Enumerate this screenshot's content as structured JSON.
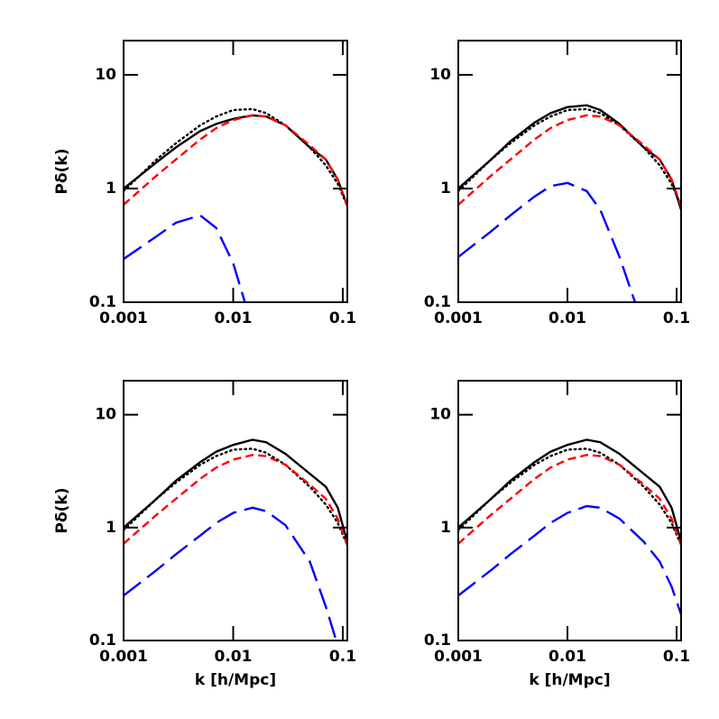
{
  "chart_data": [
    {
      "type": "line",
      "log_scale": true,
      "xlim": [
        0.001,
        0.11
      ],
      "ylim": [
        0.1,
        20
      ],
      "xticks": [
        0.001,
        0.01,
        0.1
      ],
      "yticks": [
        0.1,
        1,
        10
      ],
      "y_label": "Pδ(k)",
      "x": [
        0.001,
        0.002,
        0.003,
        0.005,
        0.007,
        0.01,
        0.015,
        0.02,
        0.03,
        0.05,
        0.07,
        0.09,
        0.11
      ],
      "series": [
        {
          "color": "#000000",
          "style": "solid",
          "values": [
            1.0,
            1.7,
            2.3,
            3.2,
            3.7,
            4.1,
            4.4,
            4.3,
            3.6,
            2.3,
            1.8,
            1.2,
            0.7
          ]
        },
        {
          "color": "#000000",
          "style": "dotted",
          "values": [
            0.95,
            1.8,
            2.5,
            3.6,
            4.3,
            4.9,
            5.0,
            4.6,
            3.6,
            2.3,
            1.6,
            1.1,
            0.7
          ]
        },
        {
          "color": "#ff0000",
          "style": "dashed",
          "values": [
            0.72,
            1.3,
            1.8,
            2.7,
            3.4,
            4.0,
            4.4,
            4.3,
            3.6,
            2.4,
            1.8,
            1.2,
            0.7
          ]
        },
        {
          "color": "#0000ff",
          "style": "longdash",
          "values": [
            0.24,
            0.38,
            0.5,
            0.58,
            0.45,
            0.22,
            0.06,
            null,
            null,
            null,
            null,
            null,
            null
          ]
        }
      ]
    },
    {
      "type": "line",
      "log_scale": true,
      "xlim": [
        0.001,
        0.11
      ],
      "ylim": [
        0.1,
        20
      ],
      "xticks": [
        0.001,
        0.01,
        0.1
      ],
      "yticks": [
        0.1,
        1,
        10
      ],
      "x": [
        0.001,
        0.002,
        0.003,
        0.005,
        0.007,
        0.01,
        0.015,
        0.02,
        0.03,
        0.05,
        0.07,
        0.09,
        0.11
      ],
      "series": [
        {
          "color": "#000000",
          "style": "solid",
          "values": [
            1.0,
            1.8,
            2.6,
            3.8,
            4.6,
            5.2,
            5.4,
            4.9,
            3.7,
            2.3,
            1.8,
            1.2,
            0.65
          ]
        },
        {
          "color": "#000000",
          "style": "dotted",
          "values": [
            0.95,
            1.8,
            2.5,
            3.6,
            4.3,
            4.9,
            5.0,
            4.6,
            3.6,
            2.3,
            1.6,
            1.1,
            0.7
          ]
        },
        {
          "color": "#ff0000",
          "style": "dashed",
          "values": [
            0.72,
            1.3,
            1.8,
            2.7,
            3.4,
            4.0,
            4.4,
            4.3,
            3.6,
            2.4,
            1.8,
            1.2,
            0.7
          ]
        },
        {
          "color": "#0000ff",
          "style": "longdash",
          "values": [
            0.25,
            0.42,
            0.58,
            0.85,
            1.05,
            1.12,
            0.95,
            0.65,
            0.25,
            0.06,
            null,
            null,
            null
          ]
        }
      ]
    },
    {
      "type": "line",
      "log_scale": true,
      "xlim": [
        0.001,
        0.11
      ],
      "ylim": [
        0.1,
        20
      ],
      "xticks": [
        0.001,
        0.01,
        0.1
      ],
      "yticks": [
        0.1,
        1,
        10
      ],
      "x_label": "k [h/Mpc]",
      "y_label": "Pδ(k)",
      "x": [
        0.001,
        0.002,
        0.003,
        0.005,
        0.007,
        0.01,
        0.015,
        0.02,
        0.03,
        0.05,
        0.07,
        0.09,
        0.11
      ],
      "series": [
        {
          "color": "#000000",
          "style": "solid",
          "values": [
            1.0,
            1.8,
            2.6,
            3.8,
            4.7,
            5.4,
            6.0,
            5.7,
            4.5,
            3.0,
            2.3,
            1.5,
            0.75
          ]
        },
        {
          "color": "#000000",
          "style": "dotted",
          "values": [
            0.95,
            1.8,
            2.5,
            3.6,
            4.3,
            4.9,
            5.0,
            4.6,
            3.6,
            2.3,
            1.6,
            1.1,
            0.7
          ]
        },
        {
          "color": "#ff0000",
          "style": "dashed",
          "values": [
            0.72,
            1.3,
            1.8,
            2.7,
            3.4,
            4.0,
            4.4,
            4.3,
            3.6,
            2.4,
            1.8,
            1.2,
            0.7
          ]
        },
        {
          "color": "#0000ff",
          "style": "longdash",
          "values": [
            0.25,
            0.42,
            0.58,
            0.85,
            1.1,
            1.35,
            1.5,
            1.4,
            1.05,
            0.5,
            0.2,
            0.09,
            null
          ]
        }
      ]
    },
    {
      "type": "line",
      "log_scale": true,
      "xlim": [
        0.001,
        0.11
      ],
      "ylim": [
        0.1,
        20
      ],
      "xticks": [
        0.001,
        0.01,
        0.1
      ],
      "yticks": [
        0.1,
        1,
        10
      ],
      "x_label": "k [h/Mpc]",
      "x": [
        0.001,
        0.002,
        0.003,
        0.005,
        0.007,
        0.01,
        0.015,
        0.02,
        0.03,
        0.05,
        0.07,
        0.09,
        0.11
      ],
      "series": [
        {
          "color": "#000000",
          "style": "solid",
          "values": [
            1.0,
            1.8,
            2.6,
            3.8,
            4.7,
            5.4,
            6.0,
            5.7,
            4.5,
            3.0,
            2.3,
            1.5,
            0.75
          ]
        },
        {
          "color": "#000000",
          "style": "dotted",
          "values": [
            0.95,
            1.8,
            2.5,
            3.6,
            4.3,
            4.9,
            5.0,
            4.6,
            3.6,
            2.3,
            1.6,
            1.1,
            0.7
          ]
        },
        {
          "color": "#ff0000",
          "style": "dashed",
          "values": [
            0.72,
            1.3,
            1.8,
            2.7,
            3.4,
            4.0,
            4.4,
            4.3,
            3.6,
            2.4,
            1.8,
            1.2,
            0.7
          ]
        },
        {
          "color": "#0000ff",
          "style": "longdash",
          "values": [
            0.25,
            0.42,
            0.58,
            0.85,
            1.1,
            1.35,
            1.55,
            1.5,
            1.2,
            0.75,
            0.5,
            0.3,
            0.17
          ]
        }
      ]
    }
  ]
}
